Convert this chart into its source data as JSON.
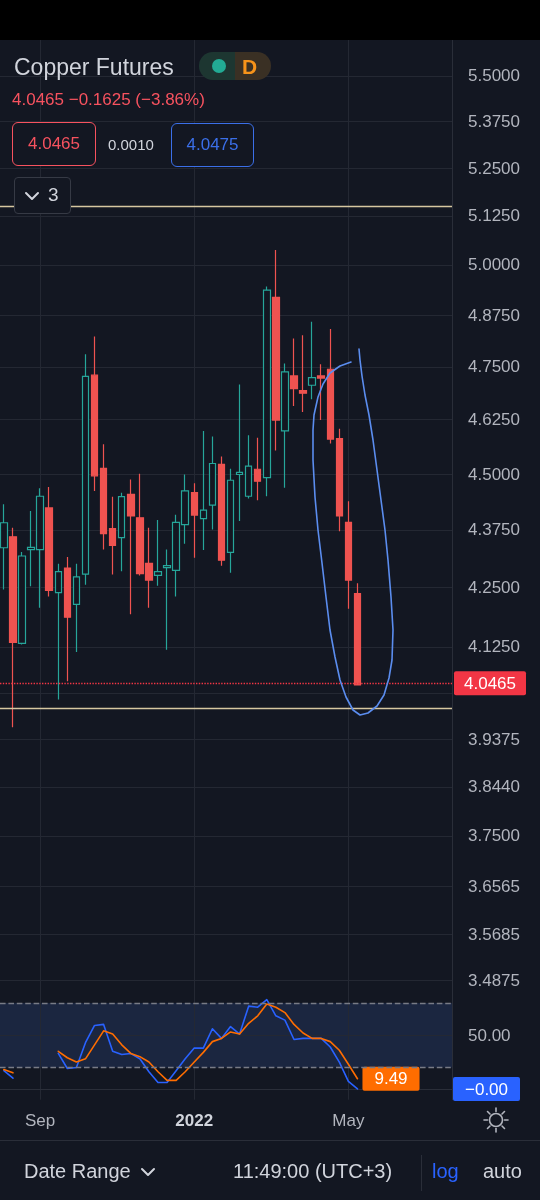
{
  "chart_data": [
    {
      "type": "candlestick",
      "title": "Copper Futures",
      "subtitle": "4.0465 −0.1625 (−3.86%)",
      "annotations": [
        "4.0465",
        "0.0010",
        "4.0475",
        "3",
        "D"
      ],
      "x": [
        "2021-08-09",
        "2021-08-16",
        "2021-08-23",
        "2021-08-30",
        "2021-09-06",
        "2021-09-13",
        "2021-09-20",
        "2021-09-27",
        "2021-10-04",
        "2021-10-11",
        "2021-10-18",
        "2021-10-25",
        "2021-11-01",
        "2021-11-08",
        "2021-11-15",
        "2021-11-22",
        "2021-11-29",
        "2021-12-06",
        "2021-12-13",
        "2021-12-20",
        "2021-12-27",
        "2022-01-03",
        "2022-01-10",
        "2022-01-17",
        "2022-01-24",
        "2022-01-31",
        "2022-02-07",
        "2022-02-14",
        "2022-02-21",
        "2022-02-28",
        "2022-03-07",
        "2022-03-14",
        "2022-03-21",
        "2022-03-28",
        "2022-04-04",
        "2022-04-11",
        "2022-04-18",
        "2022-04-25",
        "2022-05-02",
        "2022-05-09"
      ],
      "ohlc": [
        [
          4.336,
          4.432,
          4.246,
          4.391
        ],
        [
          4.36,
          4.38,
          3.961,
          4.134
        ],
        [
          4.132,
          4.327,
          4.13,
          4.318
        ],
        [
          4.332,
          4.417,
          4.253,
          4.337
        ],
        [
          4.332,
          4.468,
          4.207,
          4.45
        ],
        [
          4.424,
          4.471,
          4.231,
          4.244
        ],
        [
          4.239,
          4.301,
          4.017,
          4.284
        ],
        [
          4.292,
          4.316,
          4.054,
          4.187
        ],
        [
          4.214,
          4.301,
          4.114,
          4.273
        ],
        [
          4.279,
          4.78,
          4.256,
          4.727
        ],
        [
          4.73,
          4.823,
          4.462,
          4.496
        ],
        [
          4.513,
          4.568,
          4.332,
          4.367
        ],
        [
          4.378,
          4.449,
          4.278,
          4.341
        ],
        [
          4.358,
          4.458,
          4.285,
          4.449
        ],
        [
          4.454,
          4.488,
          4.193,
          4.406
        ],
        [
          4.402,
          4.501,
          4.276,
          4.28
        ],
        [
          4.302,
          4.38,
          4.207,
          4.266
        ],
        [
          4.276,
          4.397,
          4.254,
          4.284
        ],
        [
          4.293,
          4.332,
          4.119,
          4.297
        ],
        [
          4.287,
          4.409,
          4.231,
          4.392
        ],
        [
          4.387,
          4.499,
          4.345,
          4.462
        ],
        [
          4.458,
          4.479,
          4.314,
          4.408
        ],
        [
          4.4,
          4.599,
          4.331,
          4.419
        ],
        [
          4.43,
          4.586,
          4.376,
          4.524
        ],
        [
          4.522,
          4.54,
          4.297,
          4.309
        ],
        [
          4.326,
          4.512,
          4.282,
          4.486
        ],
        [
          4.499,
          4.708,
          4.395,
          4.504
        ],
        [
          4.45,
          4.589,
          4.445,
          4.518
        ],
        [
          4.511,
          4.583,
          4.441,
          4.484
        ],
        [
          4.492,
          4.946,
          4.45,
          4.937
        ],
        [
          4.919,
          5.038,
          4.554,
          4.624
        ],
        [
          4.599,
          4.758,
          4.469,
          4.738
        ],
        [
          4.728,
          4.818,
          4.657,
          4.698
        ],
        [
          4.693,
          4.826,
          4.643,
          4.687
        ],
        [
          4.706,
          4.859,
          4.673,
          4.724
        ],
        [
          4.728,
          4.756,
          4.624,
          4.723
        ],
        [
          4.744,
          4.841,
          4.57,
          4.58
        ],
        [
          4.581,
          4.604,
          4.372,
          4.406
        ],
        [
          4.392,
          4.439,
          4.205,
          4.266
        ],
        [
          4.237,
          4.259,
          4.0465,
          4.0465
        ]
      ],
      "colors": [
        "#26a69a",
        "#ef5350",
        "#26a69a",
        "#26a69a",
        "#26a69a",
        "#ef5350",
        "#26a69a",
        "#ef5350",
        "#26a69a",
        "#26a69a",
        "#ef5350",
        "#ef5350",
        "#ef5350",
        "#26a69a",
        "#ef5350",
        "#ef5350",
        "#ef5350",
        "#26a69a",
        "#26a69a",
        "#26a69a",
        "#26a69a",
        "#ef5350",
        "#26a69a",
        "#26a69a",
        "#ef5350",
        "#26a69a",
        "#26a69a",
        "#26a69a",
        "#ef5350",
        "#26a69a",
        "#ef5350",
        "#26a69a",
        "#ef5350",
        "#ef5350",
        "#26a69a",
        "#ef5350",
        "#ef5350",
        "#ef5350",
        "#ef5350",
        "#ef5350"
      ],
      "xlim": [
        "2021-08-06",
        "2022-07-21"
      ],
      "xticks": [
        {
          "value": "2021-09-06",
          "label": null
        },
        {
          "value": "2022-01-03",
          "label": null
        },
        {
          "value": "2022-05-02",
          "label": null
        }
      ],
      "ylim": [
        3.47,
        5.6
      ],
      "yticks": [
        3.4875,
        3.5685,
        3.6565,
        {
          "value": 3.75,
          "label": "3.7500"
        },
        {
          "value": 3.844,
          "label": "3.8440"
        },
        3.9375,
        {
          "value": 4.03,
          "label": null
        },
        {
          "value": 4.125,
          "label": "4.1250"
        },
        {
          "value": 4.25,
          "label": "4.2500"
        },
        {
          "value": 4.375,
          "label": "4.3750"
        },
        {
          "value": 4.5,
          "label": "4.5000"
        },
        {
          "value": 4.625,
          "label": "4.6250"
        },
        {
          "value": 4.75,
          "label": "4.7500"
        },
        {
          "value": 4.875,
          "label": "4.8750"
        },
        {
          "value": 5,
          "label": "5.0000"
        },
        {
          "value": 5.125,
          "label": "5.1250"
        },
        {
          "value": 5.25,
          "label": "5.2500"
        },
        {
          "value": 5.375,
          "label": "5.3750"
        },
        {
          "value": 5.5,
          "label": "5.5000"
        }
      ],
      "log": true,
      "grid": true,
      "tick_labels": "y",
      "ref_lines": [
        {
          "axis": "y",
          "value": 5.15,
          "color": "#d6c7a1"
        },
        {
          "axis": "y",
          "value": 4.0465,
          "label": "4.0465",
          "color": "#f23645",
          "line_style": "dotted"
        },
        {
          "axis": "y",
          "value": 4.0,
          "color": "#d6c7a1"
        }
      ]
    },
    {
      "type": "line",
      "x": [
        "2021-08-09",
        "2021-08-16",
        "2021-08-23",
        "2021-08-30",
        "2021-09-06",
        "2021-09-13",
        "2021-09-20",
        "2021-09-27",
        "2021-10-04",
        "2021-10-11",
        "2021-10-18",
        "2021-10-25",
        "2021-11-01",
        "2021-11-08",
        "2021-11-15",
        "2021-11-22",
        "2021-11-29",
        "2021-12-06",
        "2021-12-13",
        "2021-12-20",
        "2021-12-27",
        "2022-01-03",
        "2022-01-10",
        "2022-01-17",
        "2022-01-24",
        "2022-01-31",
        "2022-02-07",
        "2022-02-14",
        "2022-02-21",
        "2022-02-28",
        "2022-03-07",
        "2022-03-14",
        "2022-03-21",
        "2022-03-28",
        "2022-04-04",
        "2022-04-11",
        "2022-04-18",
        "2022-04-25",
        "2022-05-02",
        "2022-05-09"
      ],
      "xlim": [
        "2021-08-06",
        "2022-07-21"
      ],
      "xticks": [
        {
          "value": "2021-09-06",
          "label": "Sep"
        },
        {
          "value": "2022-01-03",
          "label": "2022"
        },
        {
          "value": "2022-05-02",
          "label": "May"
        }
      ],
      "ylim": [
        -10,
        92
      ],
      "yticks": [
        {
          "value": 0,
          "label": "−0.00"
        },
        {
          "value": 50,
          "label": "50.00"
        }
      ],
      "grid": true,
      "series": [
        {
          "color": "#2962ff",
          "values": [
            17,
            10,
            null,
            null,
            null,
            null,
            33,
            19,
            20,
            43,
            59,
            60,
            35,
            32,
            33,
            28,
            16,
            6,
            6,
            17,
            28,
            38,
            38,
            56,
            47,
            58,
            51,
            77,
            76,
            83,
            68,
            64,
            46,
            47,
            47,
            47,
            39,
            25,
            7,
            0
          ]
        },
        {
          "color": "#ff6d00",
          "values": [
            18,
            15,
            null,
            null,
            null,
            null,
            35,
            29,
            25,
            28,
            41,
            54,
            51,
            41,
            33,
            30,
            25,
            16,
            8,
            8,
            16,
            25,
            34,
            44,
            47,
            53,
            51,
            61,
            68,
            79,
            76,
            71,
            60,
            52,
            47,
            47,
            44,
            36,
            23,
            9.49
          ],
          "value_labels": [
            null,
            null,
            null,
            null,
            null,
            null,
            null,
            null,
            null,
            null,
            null,
            null,
            null,
            null,
            null,
            null,
            null,
            null,
            null,
            null,
            null,
            null,
            null,
            null,
            null,
            null,
            null,
            null,
            null,
            null,
            null,
            null,
            null,
            null,
            null,
            null,
            null,
            null,
            null,
            "9.49"
          ]
        }
      ],
      "bands": [
        {
          "axis": "y",
          "from": 20,
          "to": 80,
          "color": "#1b2640"
        }
      ],
      "ref_lines": [
        {
          "axis": "y",
          "value": 80,
          "color": "#787b86",
          "line_style": "dashed"
        },
        {
          "axis": "y",
          "value": 20,
          "color": "#787b86",
          "line_style": "dashed"
        }
      ],
      "annotations": [
        "Date Range",
        "11:49:00 (UTC+3)",
        "log",
        "auto"
      ]
    }
  ]
}
